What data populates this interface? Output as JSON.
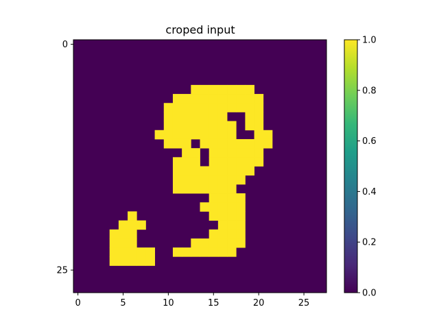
{
  "chart_data": {
    "type": "heatmap",
    "title": "croped input",
    "xlabel": "",
    "ylabel": "",
    "rows": 28,
    "cols": 28,
    "xlim": [
      -0.5,
      27.5
    ],
    "ylim": [
      27.5,
      -0.5
    ],
    "x_ticks": [
      0,
      5,
      10,
      15,
      20,
      25
    ],
    "y_ticks": [
      0,
      25
    ],
    "colormap": "viridis",
    "colorbar": {
      "min": 0.0,
      "max": 1.0,
      "ticks": [
        "0.0",
        "0.2",
        "0.4",
        "0.6",
        "0.8",
        "1.0"
      ]
    },
    "low_color": "#440154",
    "high_color": "#fde725",
    "values": [
      [
        0,
        0,
        0,
        0,
        0,
        0,
        0,
        0,
        0,
        0,
        0,
        0,
        0,
        0,
        0,
        0,
        0,
        0,
        0,
        0,
        0,
        0,
        0,
        0,
        0,
        0,
        0,
        0
      ],
      [
        0,
        0,
        0,
        0,
        0,
        0,
        0,
        0,
        0,
        0,
        0,
        0,
        0,
        0,
        0,
        0,
        0,
        0,
        0,
        0,
        0,
        0,
        0,
        0,
        0,
        0,
        0,
        0
      ],
      [
        0,
        0,
        0,
        0,
        0,
        0,
        0,
        0,
        0,
        0,
        0,
        0,
        0,
        0,
        0,
        0,
        0,
        0,
        0,
        0,
        0,
        0,
        0,
        0,
        0,
        0,
        0,
        0
      ],
      [
        0,
        0,
        0,
        0,
        0,
        0,
        0,
        0,
        0,
        0,
        0,
        0,
        0,
        0,
        0,
        0,
        0,
        0,
        0,
        0,
        0,
        0,
        0,
        0,
        0,
        0,
        0,
        0
      ],
      [
        0,
        0,
        0,
        0,
        0,
        0,
        0,
        0,
        0,
        0,
        0,
        0,
        0,
        0,
        0,
        0,
        0,
        0,
        0,
        0,
        0,
        0,
        0,
        0,
        0,
        0,
        0,
        0
      ],
      [
        0,
        0,
        0,
        0,
        0,
        0,
        0,
        0,
        0,
        0,
        0,
        0,
        0,
        1,
        1,
        1,
        1,
        1,
        1,
        1,
        0,
        0,
        0,
        0,
        0,
        0,
        0,
        0
      ],
      [
        0,
        0,
        0,
        0,
        0,
        0,
        0,
        0,
        0,
        0,
        0,
        1,
        1,
        1,
        1,
        1,
        1,
        1,
        1,
        1,
        1,
        0,
        0,
        0,
        0,
        0,
        0,
        0
      ],
      [
        0,
        0,
        0,
        0,
        0,
        0,
        0,
        0,
        0,
        0,
        1,
        1,
        1,
        1,
        1,
        1,
        1,
        1,
        1,
        1,
        1,
        0,
        0,
        0,
        0,
        0,
        0,
        0
      ],
      [
        0,
        0,
        0,
        0,
        0,
        0,
        0,
        0,
        0,
        0,
        1,
        1,
        1,
        1,
        1,
        1,
        1,
        0,
        0,
        1,
        1,
        0,
        0,
        0,
        0,
        0,
        0,
        0
      ],
      [
        0,
        0,
        0,
        0,
        0,
        0,
        0,
        0,
        0,
        0,
        1,
        1,
        1,
        1,
        1,
        1,
        1,
        1,
        0,
        1,
        1,
        0,
        0,
        0,
        0,
        0,
        0,
        0
      ],
      [
        0,
        0,
        0,
        0,
        0,
        0,
        0,
        0,
        0,
        1,
        1,
        1,
        1,
        1,
        1,
        1,
        1,
        1,
        0,
        0,
        1,
        1,
        0,
        0,
        0,
        0,
        0,
        0
      ],
      [
        0,
        0,
        0,
        0,
        0,
        0,
        0,
        0,
        0,
        0,
        1,
        1,
        1,
        0,
        1,
        1,
        1,
        1,
        1,
        1,
        1,
        1,
        0,
        0,
        0,
        0,
        0,
        0
      ],
      [
        0,
        0,
        0,
        0,
        0,
        0,
        0,
        0,
        0,
        0,
        0,
        0,
        1,
        1,
        0,
        1,
        1,
        1,
        1,
        1,
        1,
        0,
        0,
        0,
        0,
        0,
        0,
        0
      ],
      [
        0,
        0,
        0,
        0,
        0,
        0,
        0,
        0,
        0,
        0,
        0,
        1,
        1,
        1,
        0,
        1,
        1,
        1,
        1,
        1,
        1,
        0,
        0,
        0,
        0,
        0,
        0,
        0
      ],
      [
        0,
        0,
        0,
        0,
        0,
        0,
        0,
        0,
        0,
        0,
        0,
        1,
        1,
        1,
        1,
        1,
        1,
        1,
        1,
        1,
        0,
        0,
        0,
        0,
        0,
        0,
        0,
        0
      ],
      [
        0,
        0,
        0,
        0,
        0,
        0,
        0,
        0,
        0,
        0,
        0,
        1,
        1,
        1,
        1,
        1,
        1,
        1,
        1,
        0,
        0,
        0,
        0,
        0,
        0,
        0,
        0,
        0
      ],
      [
        0,
        0,
        0,
        0,
        0,
        0,
        0,
        0,
        0,
        0,
        0,
        1,
        1,
        1,
        1,
        1,
        1,
        1,
        0,
        0,
        0,
        0,
        0,
        0,
        0,
        0,
        0,
        0
      ],
      [
        0,
        0,
        0,
        0,
        0,
        0,
        0,
        0,
        0,
        0,
        0,
        0,
        0,
        0,
        0,
        1,
        1,
        1,
        1,
        0,
        0,
        0,
        0,
        0,
        0,
        0,
        0,
        0
      ],
      [
        0,
        0,
        0,
        0,
        0,
        0,
        0,
        0,
        0,
        0,
        0,
        0,
        0,
        0,
        1,
        1,
        1,
        1,
        1,
        0,
        0,
        0,
        0,
        0,
        0,
        0,
        0,
        0
      ],
      [
        0,
        0,
        0,
        0,
        0,
        0,
        1,
        0,
        0,
        0,
        0,
        0,
        0,
        0,
        0,
        1,
        1,
        1,
        1,
        0,
        0,
        0,
        0,
        0,
        0,
        0,
        0,
        0
      ],
      [
        0,
        0,
        0,
        0,
        0,
        1,
        1,
        1,
        0,
        0,
        0,
        0,
        0,
        0,
        0,
        0,
        1,
        1,
        1,
        0,
        0,
        0,
        0,
        0,
        0,
        0,
        0,
        0
      ],
      [
        0,
        0,
        0,
        0,
        1,
        1,
        1,
        0,
        0,
        0,
        0,
        0,
        0,
        0,
        0,
        1,
        1,
        1,
        1,
        0,
        0,
        0,
        0,
        0,
        0,
        0,
        0,
        0
      ],
      [
        0,
        0,
        0,
        0,
        1,
        1,
        1,
        0,
        0,
        0,
        0,
        0,
        0,
        1,
        1,
        1,
        1,
        1,
        1,
        0,
        0,
        0,
        0,
        0,
        0,
        0,
        0,
        0
      ],
      [
        0,
        0,
        0,
        0,
        1,
        1,
        1,
        1,
        1,
        0,
        0,
        1,
        1,
        1,
        1,
        1,
        1,
        1,
        0,
        0,
        0,
        0,
        0,
        0,
        0,
        0,
        0,
        0
      ],
      [
        0,
        0,
        0,
        0,
        1,
        1,
        1,
        1,
        1,
        0,
        0,
        0,
        0,
        0,
        0,
        0,
        0,
        0,
        0,
        0,
        0,
        0,
        0,
        0,
        0,
        0,
        0,
        0
      ],
      [
        0,
        0,
        0,
        0,
        0,
        0,
        0,
        0,
        0,
        0,
        0,
        0,
        0,
        0,
        0,
        0,
        0,
        0,
        0,
        0,
        0,
        0,
        0,
        0,
        0,
        0,
        0,
        0
      ],
      [
        0,
        0,
        0,
        0,
        0,
        0,
        0,
        0,
        0,
        0,
        0,
        0,
        0,
        0,
        0,
        0,
        0,
        0,
        0,
        0,
        0,
        0,
        0,
        0,
        0,
        0,
        0,
        0
      ],
      [
        0,
        0,
        0,
        0,
        0,
        0,
        0,
        0,
        0,
        0,
        0,
        0,
        0,
        0,
        0,
        0,
        0,
        0,
        0,
        0,
        0,
        0,
        0,
        0,
        0,
        0,
        0,
        0
      ]
    ]
  }
}
